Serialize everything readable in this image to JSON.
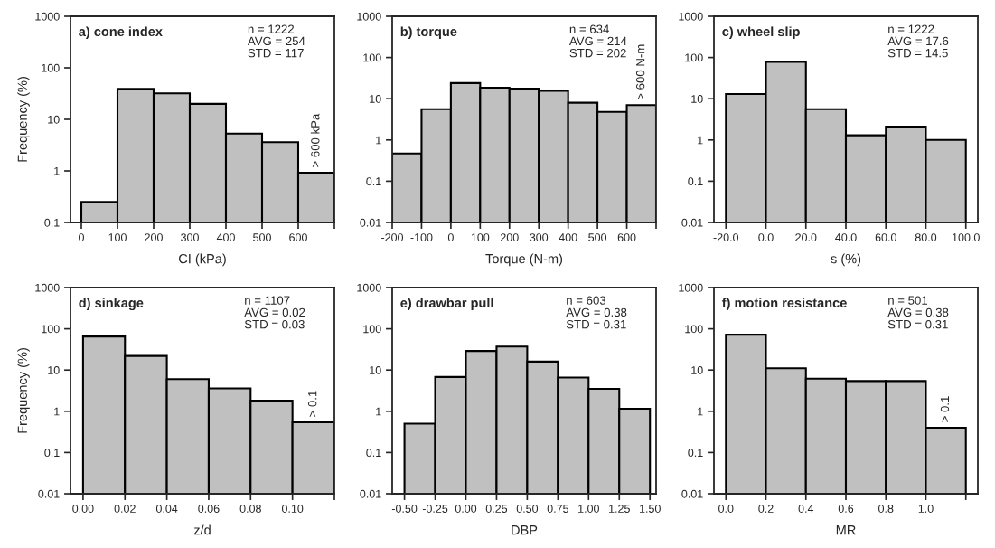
{
  "chart_data": [
    {
      "type": "histogram",
      "title": "a) cone index",
      "xlabel": "CI (kPa)",
      "ylabel": "Frequency (%)",
      "log": "y",
      "color": "#c0c0c0",
      "bins": [
        0,
        100,
        200,
        300,
        400,
        500,
        600,
        700
      ],
      "values": [
        0.25,
        39,
        32,
        20,
        5.3,
        3.6,
        0.92
      ],
      "xlim": [
        -30,
        700
      ],
      "xticks": [
        0,
        100,
        200,
        300,
        400,
        500,
        600,
        {
          "value": 700,
          "label": null
        }
      ],
      "ylim": [
        0.1,
        1000
      ],
      "yticks": [
        0.1,
        1,
        10,
        100,
        1000
      ],
      "annotations": [
        "n = 1222\nAVG = 254\nSTD = 117",
        {
          "text": "> 600 kPa",
          "x": 650,
          "y": 0.92
        }
      ]
    },
    {
      "type": "histogram",
      "title": "b) torque",
      "xlabel": "Torque (N-m)",
      "log": "y",
      "color": "#c0c0c0",
      "bins": [
        -200,
        -100,
        0,
        100,
        200,
        300,
        400,
        500,
        600,
        700
      ],
      "values": [
        0.47,
        5.6,
        24,
        18.5,
        17.5,
        15.5,
        8,
        4.8,
        7
      ],
      "xlim": [
        -200,
        700
      ],
      "xticks": [
        -200,
        -100,
        0,
        100,
        200,
        300,
        400,
        500,
        600,
        {
          "value": 700,
          "label": null
        }
      ],
      "ylim": [
        0.01,
        1000
      ],
      "yticks": [
        0.01,
        0.1,
        1,
        10,
        100,
        1000
      ],
      "annotations": [
        "n = 634\nAVG = 214\nSTD = 202",
        {
          "text": "> 600 N-m",
          "x": 650,
          "y": 7
        }
      ]
    },
    {
      "type": "histogram",
      "title": "c) wheel slip",
      "xlabel": "s (%)",
      "log": "y",
      "color": "#c0c0c0",
      "bins": [
        -20,
        0,
        20,
        40,
        60,
        80,
        100
      ],
      "values": [
        13,
        78,
        5.6,
        1.3,
        2.1,
        1.0
      ],
      "xlim": [
        -26,
        106
      ],
      "xticks": [
        {
          "value": -20,
          "label": "-20.0"
        },
        {
          "value": 0,
          "label": "0.0"
        },
        {
          "value": 20,
          "label": "20.0"
        },
        {
          "value": 40,
          "label": "40.0"
        },
        {
          "value": 60,
          "label": "60.0"
        },
        {
          "value": 80,
          "label": "80.0"
        },
        {
          "value": 100,
          "label": "100.0"
        }
      ],
      "ylim": [
        0.01,
        1000
      ],
      "yticks": [
        0.01,
        0.1,
        1,
        10,
        100,
        1000
      ],
      "annotations": [
        "n = 1222\nAVG = 17.6\nSTD = 14.5"
      ]
    },
    {
      "type": "histogram",
      "title": "d) sinkage",
      "xlabel": "z/d",
      "ylabel": "Frequency (%)",
      "log": "y",
      "color": "#c0c0c0",
      "bins": [
        0,
        0.02,
        0.04,
        0.06,
        0.08,
        0.1,
        0.12
      ],
      "values": [
        65,
        22,
        6,
        3.6,
        1.8,
        0.54
      ],
      "xlim": [
        -0.006,
        0.12
      ],
      "xticks": [
        {
          "value": 0,
          "label": "0.00"
        },
        {
          "value": 0.02,
          "label": "0.02"
        },
        {
          "value": 0.04,
          "label": "0.04"
        },
        {
          "value": 0.06,
          "label": "0.06"
        },
        {
          "value": 0.08,
          "label": "0.08"
        },
        {
          "value": 0.1,
          "label": "0.10"
        },
        {
          "value": 0.12,
          "label": null
        }
      ],
      "ylim": [
        0.01,
        1000
      ],
      "yticks": [
        0.01,
        0.1,
        1,
        10,
        100,
        1000
      ],
      "annotations": [
        "n = 1107\nAVG = 0.02\nSTD = 0.03",
        {
          "text": "> 0.1",
          "x": 0.11,
          "y": 0.54
        }
      ]
    },
    {
      "type": "histogram",
      "title": "e) drawbar pull",
      "xlabel": "DBP",
      "log": "y",
      "color": "#c0c0c0",
      "bins": [
        -0.5,
        -0.25,
        0,
        0.25,
        0.5,
        0.75,
        1,
        1.25,
        1.5
      ],
      "values": [
        0.5,
        6.8,
        29,
        37,
        16,
        6.6,
        3.5,
        1.15
      ],
      "xlim": [
        -0.6,
        1.55
      ],
      "xticks": [
        {
          "value": -0.5,
          "label": "-0.50"
        },
        {
          "value": -0.25,
          "label": "-0.25"
        },
        {
          "value": 0,
          "label": "0.00"
        },
        {
          "value": 0.25,
          "label": "0.25"
        },
        {
          "value": 0.5,
          "label": "0.50"
        },
        {
          "value": 0.75,
          "label": "0.75"
        },
        {
          "value": 1,
          "label": "1.00"
        },
        {
          "value": 1.25,
          "label": "1.25"
        },
        {
          "value": 1.5,
          "label": "1.50"
        }
      ],
      "ylim": [
        0.01,
        1000
      ],
      "yticks": [
        0.01,
        0.1,
        1,
        10,
        100,
        1000
      ],
      "annotations": [
        "n = 603\nAVG = 0.38\nSTD = 0.31"
      ]
    },
    {
      "type": "histogram",
      "title": "f) motion resistance",
      "xlabel": "MR",
      "log": "y",
      "color": "#c0c0c0",
      "bins": [
        0,
        0.2,
        0.4,
        0.6,
        0.8,
        1.0,
        1.2
      ],
      "values": [
        72,
        11,
        6.2,
        5.4,
        5.4,
        0.4
      ],
      "xlim": [
        -0.06,
        1.26
      ],
      "xticks": [
        {
          "value": 0,
          "label": "0.0"
        },
        {
          "value": 0.2,
          "label": "0.2"
        },
        {
          "value": 0.4,
          "label": "0.4"
        },
        {
          "value": 0.6,
          "label": "0.6"
        },
        {
          "value": 0.8,
          "label": "0.8"
        },
        {
          "value": 1.0,
          "label": "1.0"
        },
        {
          "value": 1.2,
          "label": null
        }
      ],
      "ylim": [
        0.01,
        1000
      ],
      "yticks": [
        0.01,
        0.1,
        1,
        10,
        100,
        1000
      ],
      "annotations": [
        "n = 501\nAVG = 0.38\nSTD = 0.31",
        {
          "text": "> 0.1",
          "x": 1.1,
          "y": 0.4
        }
      ]
    }
  ]
}
